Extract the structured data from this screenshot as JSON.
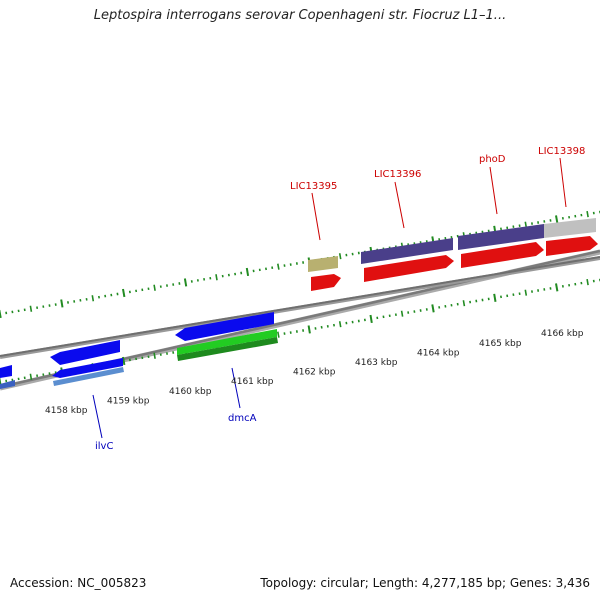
{
  "title": "Leptospira interrogans serovar Copenhageni str. Fiocruz L1–1...",
  "footer": {
    "accession": "Accession: NC_005823",
    "stats": "Topology: circular; Length: 4,277,185 bp; Genes: 3,436"
  },
  "colors": {
    "label_forward": "#cc0000",
    "label_reverse": "#0000bb",
    "tick": "#228b22",
    "backbone": "#7a7a7a"
  },
  "scale": {
    "unit": "kbp",
    "positions": [
      4158,
      4159,
      4160,
      4161,
      4162,
      4163,
      4164,
      4165,
      4166
    ]
  },
  "forward_genes": [
    {
      "label": "LIC13395",
      "cds_color": "#e01010",
      "gene_color": "#b8b070"
    },
    {
      "label": "LIC13396",
      "cds_color": "#e01010",
      "gene_color": "#4a3f8a"
    },
    {
      "label": "phoD",
      "cds_color": "#e01010",
      "gene_color": "#4a3f8a"
    },
    {
      "label": "LIC13398",
      "cds_color": "#e01010",
      "gene_color": "#c0c0c0"
    }
  ],
  "reverse_genes": [
    {
      "label": "ilvC",
      "cds_color": "#0a0aee"
    },
    {
      "label": "dmcA",
      "cds_color": "#0a0aee"
    }
  ]
}
